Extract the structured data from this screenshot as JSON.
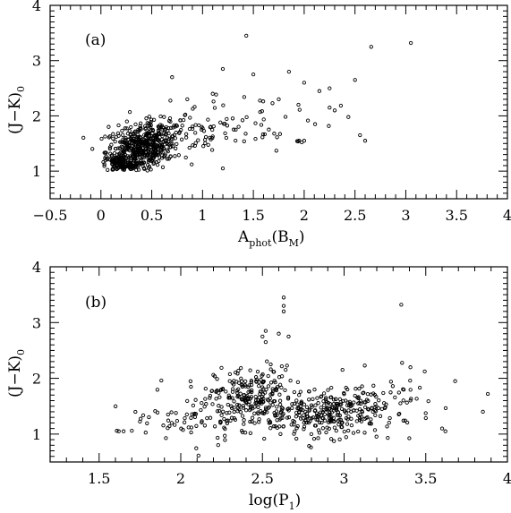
{
  "chart_data": [
    {
      "type": "scatter",
      "panel_label": "(a)",
      "xlabel": {
        "main": "A",
        "sub1": "phot",
        "mid": "(B",
        "sub2": "M",
        "end": ")"
      },
      "ylabel": {
        "main": "(J−K)",
        "sub": "0"
      },
      "xlim": [
        -0.5,
        4
      ],
      "ylim": [
        0.5,
        4
      ],
      "xticks": [
        -0.5,
        0,
        0.5,
        1,
        1.5,
        2,
        2.5,
        3,
        3.5,
        4
      ],
      "xtick_labels": [
        "−0.5",
        "0",
        "0.5",
        "1",
        "1.5",
        "2",
        "2.5",
        "3",
        "3.5",
        "4"
      ],
      "yticks": [
        1,
        2,
        3,
        4
      ],
      "ytick_labels": [
        "1",
        "2",
        "3",
        "4"
      ],
      "clusters": [
        {
          "cx": 0.35,
          "cy": 1.35,
          "sx": 0.15,
          "sy": 0.22,
          "n": 380
        },
        {
          "cx": 0.55,
          "cy": 1.55,
          "sx": 0.12,
          "sy": 0.18,
          "n": 160
        },
        {
          "cx": 0.18,
          "cy": 1.12,
          "sx": 0.07,
          "sy": 0.08,
          "n": 90
        },
        {
          "cx": 0.95,
          "cy": 1.75,
          "sx": 0.3,
          "sy": 0.22,
          "n": 70
        },
        {
          "cx": 1.6,
          "cy": 1.95,
          "sx": 0.35,
          "sy": 0.3,
          "n": 40
        }
      ],
      "x": [
        1.43,
        1.2,
        1.5,
        1.85,
        2.0,
        2.25,
        2.5,
        2.66,
        3.05,
        2.55,
        2.6,
        2.3,
        2.25,
        1.95,
        2.0,
        0.7,
        0.85,
        1.1,
        1.75,
        2.15,
        1.2,
        0.15,
        0.6
      ],
      "y": [
        3.45,
        2.85,
        2.75,
        2.8,
        2.6,
        2.5,
        2.65,
        3.25,
        3.32,
        1.65,
        1.55,
        2.1,
        2.15,
        1.55,
        1.55,
        2.7,
        2.3,
        2.4,
        2.3,
        2.45,
        1.05,
        1.62,
        1.45
      ]
    },
    {
      "type": "scatter",
      "panel_label": "(b)",
      "xlabel": {
        "main": "log(P",
        "sub": "1",
        "end": ")"
      },
      "ylabel": {
        "main": "(J−K)",
        "sub": "0"
      },
      "xlim": [
        1.2,
        4
      ],
      "ylim": [
        0.5,
        4
      ],
      "xticks": [
        1.5,
        2,
        2.5,
        3,
        3.5,
        4
      ],
      "xtick_labels": [
        "1.5",
        "2",
        "2.5",
        "3",
        "3.5",
        "4"
      ],
      "yticks": [
        1,
        2,
        3,
        4
      ],
      "ytick_labels": [
        "1",
        "2",
        "3",
        "4"
      ],
      "clusters": [
        {
          "cx": 2.45,
          "cy": 1.65,
          "sx": 0.12,
          "sy": 0.28,
          "n": 220
        },
        {
          "cx": 2.2,
          "cy": 1.4,
          "sx": 0.2,
          "sy": 0.25,
          "n": 80
        },
        {
          "cx": 2.95,
          "cy": 1.35,
          "sx": 0.12,
          "sy": 0.2,
          "n": 170
        },
        {
          "cx": 3.2,
          "cy": 1.55,
          "sx": 0.18,
          "sy": 0.25,
          "n": 90
        },
        {
          "cx": 2.75,
          "cy": 1.3,
          "sx": 0.12,
          "sy": 0.18,
          "n": 60
        },
        {
          "cx": 1.9,
          "cy": 1.15,
          "sx": 0.12,
          "sy": 0.1,
          "n": 25
        }
      ],
      "x": [
        2.63,
        2.63,
        2.63,
        2.52,
        2.5,
        2.6,
        2.66,
        3.35,
        1.62,
        1.65,
        1.7,
        3.88,
        3.68,
        3.85,
        2.52,
        3.6,
        3.62
      ],
      "y": [
        3.45,
        3.3,
        3.2,
        2.85,
        2.75,
        2.8,
        2.75,
        3.32,
        1.05,
        1.05,
        1.06,
        1.72,
        1.95,
        1.4,
        2.65,
        1.1,
        1.05
      ]
    }
  ]
}
